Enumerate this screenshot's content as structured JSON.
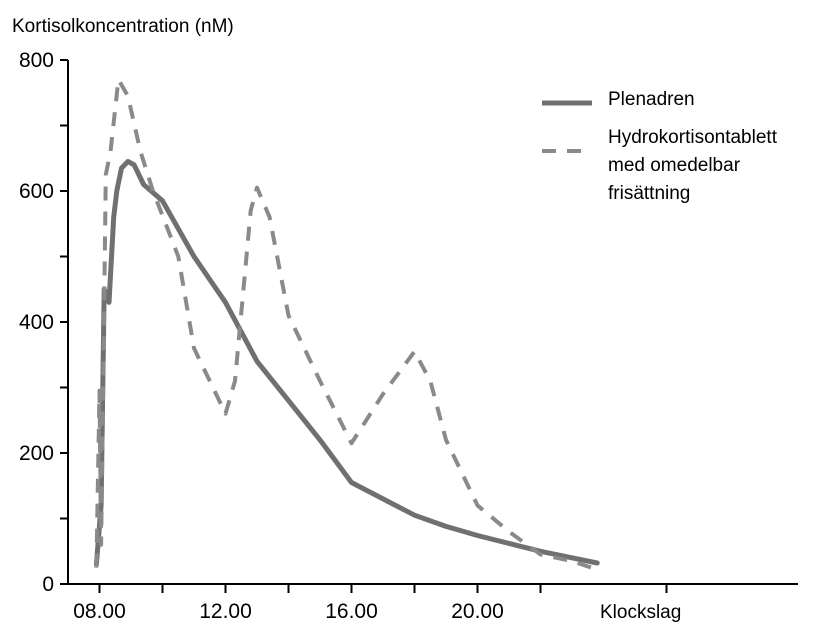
{
  "chart_data": {
    "type": "line",
    "ylabel": "Kortisolkoncentration (nM)",
    "xlabel": "Klockslag",
    "ylim": [
      0,
      800
    ],
    "xlim": [
      7.0,
      28.0
    ],
    "yticks": [
      0,
      200,
      400,
      600,
      800
    ],
    "xticks": [
      {
        "value": 8,
        "label": "08.00"
      },
      {
        "value": 12,
        "label": "12.00"
      },
      {
        "value": 16,
        "label": "16.00"
      },
      {
        "value": 20,
        "label": "20.00"
      }
    ],
    "grid": false,
    "legend": "top-right",
    "series": [
      {
        "name": "Plenadren",
        "style": "solid",
        "color": "#707070",
        "points": [
          [
            7.9,
            30
          ],
          [
            8.05,
            120
          ],
          [
            8.15,
            450
          ],
          [
            8.3,
            430
          ],
          [
            8.45,
            560
          ],
          [
            8.55,
            600
          ],
          [
            8.7,
            635
          ],
          [
            8.9,
            645
          ],
          [
            9.1,
            640
          ],
          [
            9.4,
            610
          ],
          [
            10.0,
            585
          ],
          [
            11.0,
            500
          ],
          [
            12.0,
            430
          ],
          [
            13.0,
            340
          ],
          [
            14.0,
            280
          ],
          [
            15.0,
            220
          ],
          [
            16.0,
            155
          ],
          [
            17.0,
            130
          ],
          [
            18.0,
            105
          ],
          [
            19.0,
            88
          ],
          [
            20.0,
            74
          ],
          [
            21.0,
            62
          ],
          [
            22.0,
            50
          ],
          [
            23.0,
            40
          ],
          [
            23.8,
            32
          ]
        ]
      },
      {
        "name": "Hydrokortisontablett med omedelbar frisättning",
        "style": "dashed",
        "color": "#8a8a8a",
        "points": [
          [
            7.9,
            25
          ],
          [
            8.0,
            295
          ],
          [
            8.05,
            60
          ],
          [
            8.1,
            230
          ],
          [
            8.2,
            625
          ],
          [
            8.35,
            660
          ],
          [
            8.6,
            770
          ],
          [
            8.9,
            745
          ],
          [
            9.3,
            660
          ],
          [
            9.7,
            600
          ],
          [
            10.5,
            500
          ],
          [
            11.0,
            360
          ],
          [
            12.0,
            260
          ],
          [
            12.3,
            310
          ],
          [
            12.8,
            570
          ],
          [
            13.0,
            605
          ],
          [
            13.4,
            560
          ],
          [
            14.0,
            410
          ],
          [
            15.0,
            310
          ],
          [
            16.0,
            215
          ],
          [
            17.0,
            290
          ],
          [
            18.0,
            355
          ],
          [
            18.5,
            310
          ],
          [
            19.0,
            220
          ],
          [
            20.0,
            120
          ],
          [
            21.0,
            80
          ],
          [
            22.0,
            45
          ],
          [
            23.0,
            35
          ],
          [
            23.8,
            22
          ]
        ]
      }
    ],
    "legend_labels": {
      "plenadren": "Plenadren",
      "hydro_line1": "Hydrokortisontablett",
      "hydro_line2": "med omedelbar",
      "hydro_line3": "frisättning"
    }
  }
}
